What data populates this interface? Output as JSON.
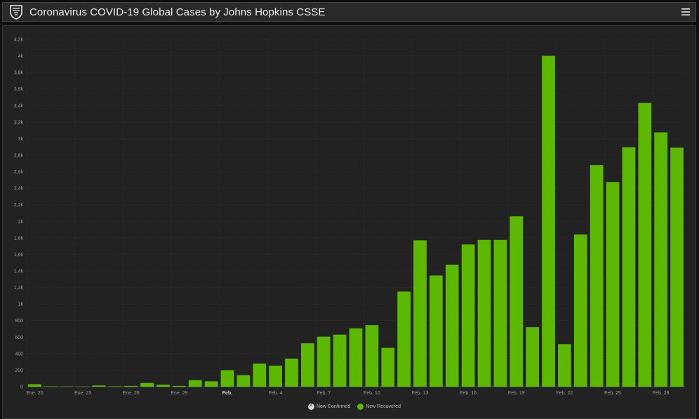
{
  "header": {
    "title": "Coronavirus COVID-19 Global Cases by Johns Hopkins CSSE"
  },
  "colors": {
    "bar": "#5cb800",
    "background": "#222222",
    "grid": "#3a3a3a",
    "axis_text": "#9a9a9a"
  },
  "chart_data": {
    "type": "bar",
    "xlabel": "",
    "ylabel": "",
    "ylim": [
      0,
      4200
    ],
    "y_ticks": [
      "0",
      "200",
      "400",
      "600",
      "800",
      "1k",
      "1,2k",
      "1,4k",
      "1,6k",
      "1,8k",
      "2k",
      "2,2k",
      "2,4k",
      "2,6k",
      "2,8k",
      "3k",
      "3,2k",
      "3,4k",
      "3,6k",
      "3,8k",
      "4k",
      "4,2k"
    ],
    "x_ticks": [
      {
        "index": 0,
        "label": "Ene. 20",
        "bold": false
      },
      {
        "index": 3,
        "label": "Ene. 23",
        "bold": false
      },
      {
        "index": 6,
        "label": "Ene. 26",
        "bold": false
      },
      {
        "index": 9,
        "label": "Ene. 29",
        "bold": false
      },
      {
        "index": 12,
        "label": "Feb.",
        "bold": true
      },
      {
        "index": 15,
        "label": "Feb. 4",
        "bold": false
      },
      {
        "index": 18,
        "label": "Feb. 7",
        "bold": false
      },
      {
        "index": 21,
        "label": "Feb. 10",
        "bold": false
      },
      {
        "index": 24,
        "label": "Feb. 13",
        "bold": false
      },
      {
        "index": 27,
        "label": "Feb. 16",
        "bold": false
      },
      {
        "index": 30,
        "label": "Feb. 19",
        "bold": false
      },
      {
        "index": 33,
        "label": "Feb. 22",
        "bold": false
      },
      {
        "index": 36,
        "label": "Feb. 25",
        "bold": false
      },
      {
        "index": 39,
        "label": "Feb. 28",
        "bold": false
      }
    ],
    "grid": true,
    "legend_position": "bottom",
    "legend": [
      {
        "name": "New Confirmed",
        "color": "#d9d9d9",
        "disabled": true
      },
      {
        "name": "New Recovered",
        "color": "#5cb800",
        "disabled": false
      }
    ],
    "series": [
      {
        "name": "New Recovered",
        "values": [
          30,
          5,
          3,
          2,
          15,
          5,
          10,
          45,
          25,
          10,
          80,
          65,
          200,
          140,
          280,
          255,
          340,
          525,
          605,
          630,
          705,
          745,
          470,
          1150,
          1770,
          1345,
          1475,
          1720,
          1775,
          1775,
          2060,
          720,
          4000,
          515,
          1840,
          2680,
          2475,
          2895,
          3430,
          3075,
          2890
        ]
      }
    ]
  }
}
